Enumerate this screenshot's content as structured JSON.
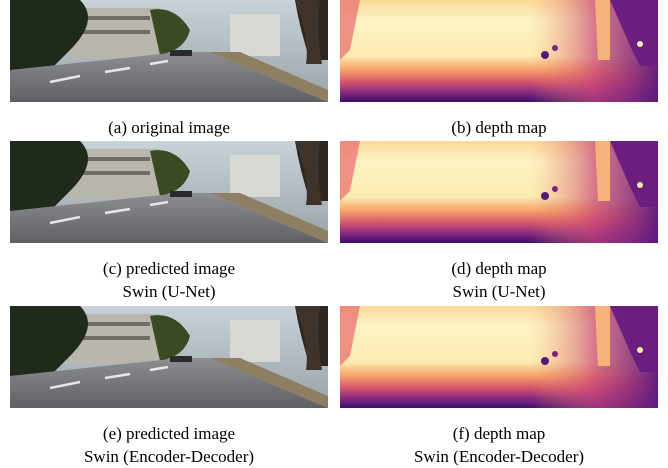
{
  "panels": [
    {
      "caption": [
        "(a) original image"
      ]
    },
    {
      "caption": [
        "(b) depth map"
      ]
    },
    {
      "caption": [
        "(c) predicted image",
        "Swin (U-Net)"
      ]
    },
    {
      "caption": [
        "(d) depth map",
        "Swin (U-Net)"
      ]
    },
    {
      "caption": [
        "(e) predicted image",
        "Swin (Encoder-Decoder)"
      ]
    },
    {
      "caption": [
        "(f) depth map",
        "Swin (Encoder-Decoder)"
      ]
    }
  ]
}
